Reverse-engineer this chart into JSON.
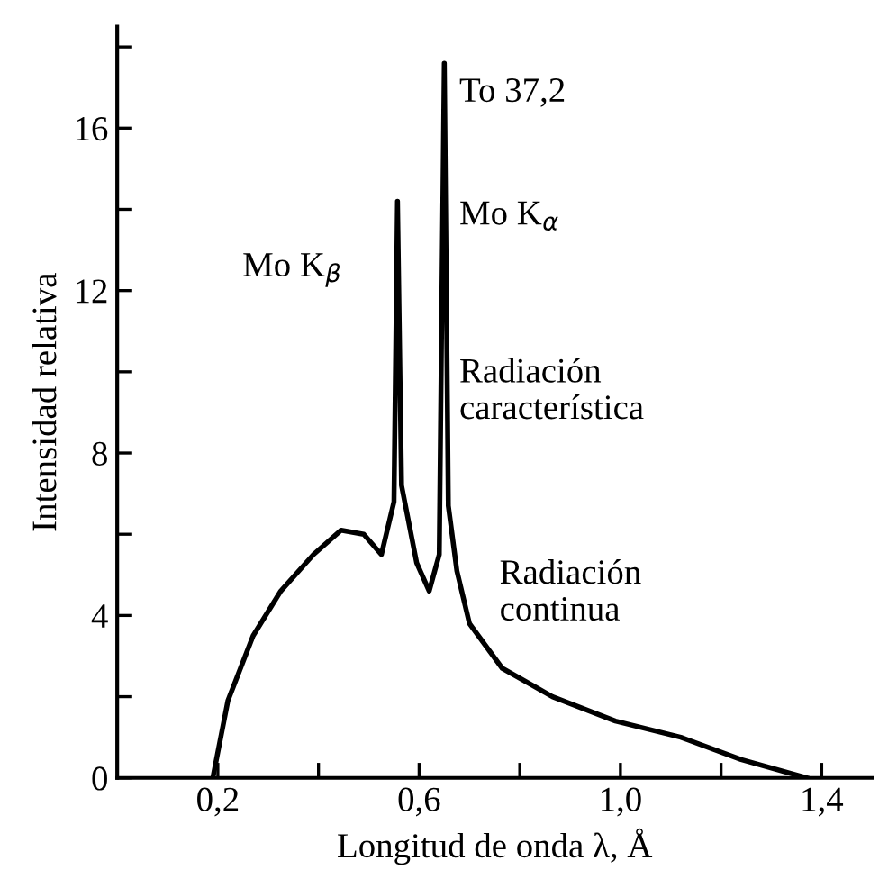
{
  "chart_data": {
    "type": "line",
    "xlabel": "Longitud de onda λ, Å",
    "ylabel": "Intensidad relativa",
    "x": [
      0.19,
      0.22,
      0.27,
      0.325,
      0.39,
      0.445,
      0.49,
      0.525,
      0.55,
      0.557,
      0.565,
      0.595,
      0.62,
      0.64,
      0.65,
      0.658,
      0.675,
      0.7,
      0.765,
      0.865,
      0.99,
      1.12,
      1.24,
      1.37
    ],
    "series": [
      {
        "color": "#000000",
        "values": [
          0,
          1.9,
          3.5,
          4.6,
          5.5,
          6.1,
          6.0,
          5.5,
          6.8,
          14.2,
          7.2,
          5.3,
          4.6,
          5.5,
          17.6,
          6.7,
          5.1,
          3.8,
          2.7,
          2.0,
          1.4,
          1.0,
          0.45,
          0
        ]
      }
    ],
    "xlim": [
      0,
      1.5
    ],
    "ylim": [
      0,
      18.5
    ],
    "xticks": [
      {
        "value": 0.2,
        "label": "0,2"
      },
      {
        "value": 0.4,
        "label": null
      },
      {
        "value": 0.6,
        "label": "0,6"
      },
      {
        "value": 0.8,
        "label": null
      },
      {
        "value": 1.0,
        "label": "1,0"
      },
      {
        "value": 1.2,
        "label": null
      },
      {
        "value": 1.4,
        "label": "1,4"
      }
    ],
    "yticks": [
      0,
      {
        "value": 2,
        "label": null
      },
      4,
      {
        "value": 6,
        "label": null
      },
      8,
      {
        "value": 10,
        "label": null
      },
      12,
      {
        "value": 14,
        "label": null
      },
      16,
      {
        "value": 18,
        "label": null
      }
    ],
    "annotations": [
      {
        "text": "To 37,2",
        "x": 0.65,
        "y": 17.6
      },
      {
        "text": "Mo K$_{α}$",
        "x": 0.65,
        "y": 14.2
      },
      {
        "text": "Mo K$_{β}$",
        "x": 0.557,
        "y": 12.5
      },
      {
        "text": "Radiación\ncaracterística",
        "x": 0.65,
        "y": 9.5
      },
      {
        "text": "Radiación\ncontinua",
        "x": 0.7,
        "y": 3.8
      }
    ],
    "grid": false,
    "legend": false,
    "marker": "none",
    "line_style": "solid"
  }
}
